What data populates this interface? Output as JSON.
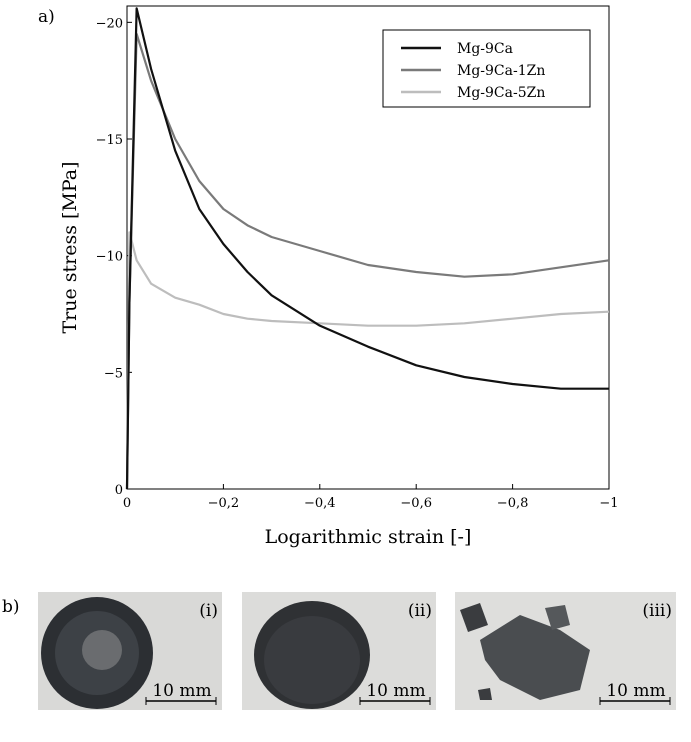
{
  "panel_labels": [
    "a)",
    "b)"
  ],
  "photos": [
    {
      "label": "(i)",
      "scale_bar": "10 mm"
    },
    {
      "label": "(ii)",
      "scale_bar": "10 mm"
    },
    {
      "label": "(iii)",
      "scale_bar": "10 mm"
    }
  ],
  "chart_data": {
    "type": "line",
    "x_label": "Logarithmic strain [-]",
    "y_label": "True stress [MPa]",
    "x": [
      0,
      -0.005,
      -0.02,
      -0.05,
      -0.1,
      -0.15,
      -0.2,
      -0.25,
      -0.3,
      -0.4,
      -0.5,
      -0.6,
      -0.7,
      -0.8,
      -0.9,
      -1
    ],
    "series": [
      {
        "name": "Mg-9Ca",
        "color": "#111111",
        "values": [
          0,
          -8,
          -20.6,
          -18,
          -14.5,
          -12,
          -10.5,
          -9.3,
          -8.3,
          -7,
          -6.1,
          -5.3,
          -4.8,
          -4.5,
          -4.3,
          -4.3
        ]
      },
      {
        "name": "Mg-9Ca-1Zn",
        "color": "#7a7a7a",
        "values": [
          0,
          -8,
          -19.5,
          -17.5,
          -15,
          -13.2,
          -12,
          -11.3,
          -10.8,
          -10.2,
          -9.6,
          -9.3,
          -9.1,
          -9.2,
          -9.5,
          -9.8
        ]
      },
      {
        "name": "Mg-9Ca-5Zn",
        "color": "#bdbdbd",
        "values": [
          0,
          -11,
          -9.8,
          -8.8,
          -8.2,
          -7.9,
          -7.5,
          -7.3,
          -7.2,
          -7.1,
          -7.0,
          -7.0,
          -7.1,
          -7.3,
          -7.5,
          -7.6
        ]
      }
    ],
    "xlim": [
      0,
      -1
    ],
    "xticks": [
      0,
      {
        "value": -0.2,
        "label": "−0,2"
      },
      {
        "value": -0.4,
        "label": "−0,4"
      },
      {
        "value": -0.6,
        "label": "−0,6"
      },
      {
        "value": -0.8,
        "label": "−0,8"
      },
      {
        "value": -1,
        "label": "−1"
      }
    ],
    "ylim": [
      0,
      -20.7
    ],
    "yticks": [
      0,
      {
        "value": -5,
        "label": "−5"
      },
      {
        "value": -10,
        "label": "−10"
      },
      {
        "value": -15,
        "label": "−15"
      },
      {
        "value": -20,
        "label": "−20"
      }
    ],
    "legend": "upper right",
    "grid": false
  }
}
